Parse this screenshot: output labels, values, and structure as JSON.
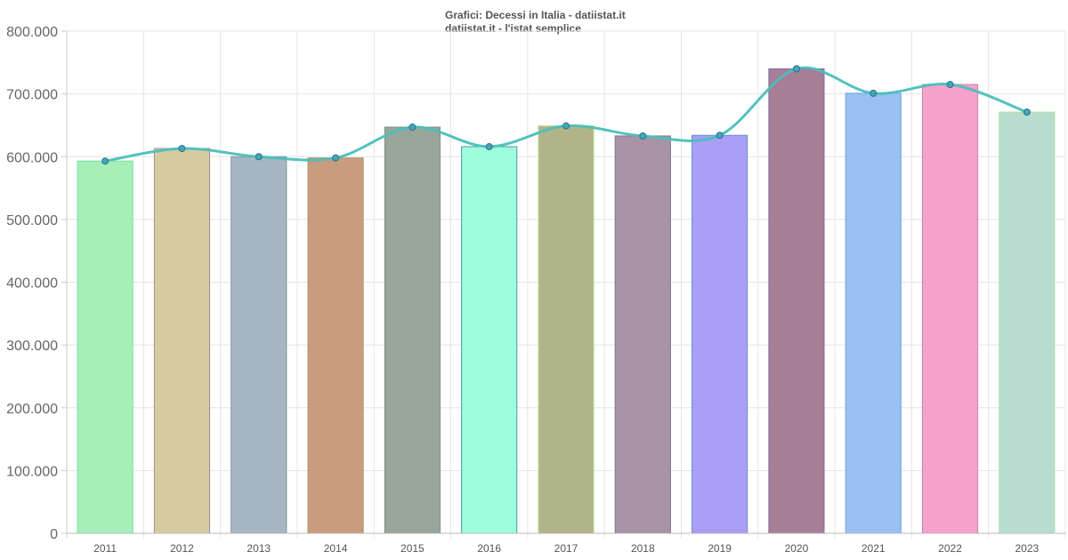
{
  "chart_data": {
    "type": "bar",
    "title": "Grafici: Decessi in Italia - datiistat.it",
    "subtitle": "datiistat.it - l'istat semplice",
    "xlabel": "",
    "ylabel": "",
    "ylim": [
      0,
      800000
    ],
    "grid": true,
    "yticks": [
      "0",
      "100.000",
      "200.000",
      "300.000",
      "400.000",
      "500.000",
      "600.000",
      "700.000",
      "800.000"
    ],
    "categories": [
      "2011",
      "2012",
      "2013",
      "2014",
      "2015",
      "2016",
      "2017",
      "2018",
      "2019",
      "2020",
      "2021",
      "2022",
      "2023"
    ],
    "values": [
      593000,
      613000,
      600000,
      598000,
      647000,
      616000,
      649000,
      633000,
      634000,
      740000,
      701000,
      715000,
      671000
    ],
    "line_overlay": {
      "type": "spline",
      "color": "#4bbfba",
      "values_same_as_bars": true
    },
    "bar_colors": [
      "#a8eeb8",
      "#d4cc9e",
      "#a6b6c2",
      "#c99c7e",
      "#98a69c",
      "#9cfedd",
      "#b0b488",
      "#a892a6",
      "#aa9ef6",
      "#a67e96",
      "#98c0f2",
      "#f6a2cc",
      "#b8dcd0"
    ],
    "bar_borders": [
      "#6ee6a0",
      "#a88898",
      "#7e94a2",
      "#a69a6e",
      "#7e8c86",
      "#4e9a92",
      "#bee090",
      "#7e7686",
      "#5e92d6",
      "#7e6ea0",
      "#6ea2e6",
      "#c6869e",
      "#a6e69a"
    ]
  }
}
